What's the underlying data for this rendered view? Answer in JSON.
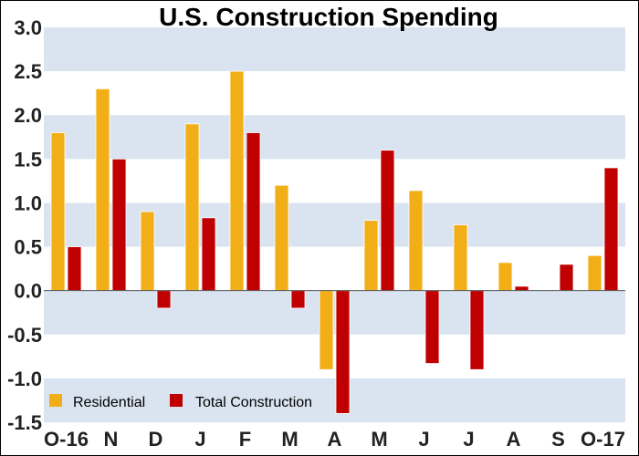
{
  "chart_data": {
    "type": "bar",
    "title": "U.S. Construction Spending",
    "categories": [
      "O-16",
      "N",
      "D",
      "J",
      "F",
      "M",
      "A",
      "M",
      "J",
      "J",
      "A",
      "S",
      "O-17"
    ],
    "series": [
      {
        "name": "Residential",
        "color": "#F2AE16",
        "values": [
          1.8,
          2.3,
          0.9,
          1.9,
          2.5,
          1.2,
          -0.9,
          0.8,
          1.14,
          0.75,
          0.32,
          0.0,
          0.4
        ]
      },
      {
        "name": "Total Construction",
        "color": "#C00000",
        "values": [
          0.5,
          1.5,
          -0.2,
          0.83,
          1.8,
          -0.2,
          -1.4,
          1.6,
          -0.83,
          -0.9,
          0.05,
          0.3,
          1.4
        ]
      }
    ],
    "ylim": [
      -1.5,
      3.0
    ],
    "yticks": [
      "-1.5",
      "-1.0",
      "-0.5",
      "0.0",
      "0.5",
      "1.0",
      "1.5",
      "2.0",
      "2.5",
      "3.0"
    ],
    "band_color": "#D9E4F0",
    "legend_position": "bottom-left",
    "grid": "alternating horizontal bands"
  }
}
